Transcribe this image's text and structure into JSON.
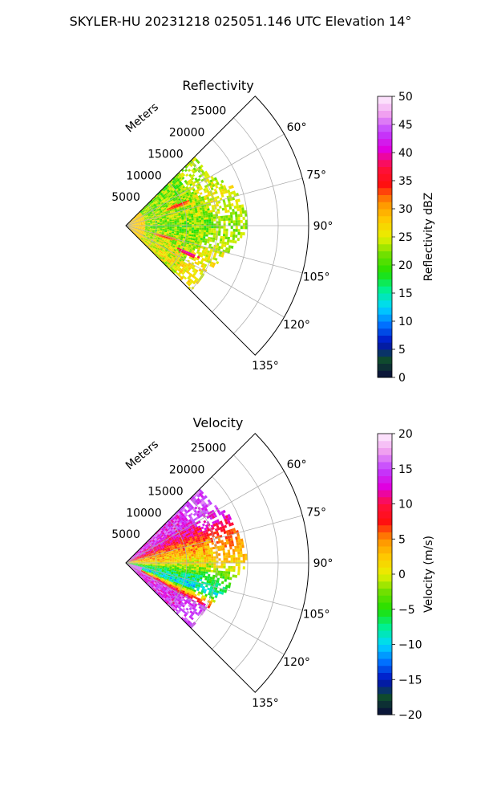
{
  "figure": {
    "suptitle": "SKYLER-HU  20231218  025051.146 UTC Elevation 14°"
  },
  "chart_data": [
    {
      "type": "heatmap",
      "projection": "polar-sector",
      "title": "Reflectivity",
      "theta_range_deg": [
        45,
        135
      ],
      "theta_ticks": [
        "60°",
        "75°",
        "90°",
        "105°",
        "120°",
        "135°"
      ],
      "radial_label": "Meters",
      "radial_ticks": [
        "5000",
        "10000",
        "15000",
        "20000",
        "25000"
      ],
      "rmax": 30000,
      "grid": true,
      "data_extent_m": 20000,
      "field_summary": [
        {
          "azimuth_deg": 60,
          "max_range_m": 16000,
          "dominant_dbz": 22
        },
        {
          "azimuth_deg": 70,
          "max_range_m": 18500,
          "dominant_dbz": 24
        },
        {
          "azimuth_deg": 80,
          "max_range_m": 19500,
          "dominant_dbz": 23
        },
        {
          "azimuth_deg": 90,
          "max_range_m": 20000,
          "dominant_dbz": 21
        },
        {
          "azimuth_deg": 100,
          "max_range_m": 18000,
          "dominant_dbz": 22
        },
        {
          "azimuth_deg": 110,
          "max_range_m": 16500,
          "dominant_dbz": 24
        },
        {
          "azimuth_deg": 120,
          "max_range_m": 15000,
          "dominant_dbz": 25
        }
      ],
      "cores": [
        {
          "azimuth_deg": 68,
          "range_m": 9000,
          "dbz": 36
        },
        {
          "azimuth_deg": 113,
          "range_m": 11000,
          "dbz": 41
        },
        {
          "azimuth_deg": 105,
          "range_m": 6500,
          "dbz": 35
        }
      ],
      "colorbar": {
        "label": "Reflectivity dBZ",
        "min": 0,
        "max": 50,
        "ticks": [
          "0",
          "5",
          "10",
          "15",
          "20",
          "25",
          "30",
          "35",
          "40",
          "45",
          "50"
        ],
        "stops": [
          "#0a0a3c",
          "#0f4a2e",
          "#0010c0",
          "#0070ff",
          "#00d8ff",
          "#00f090",
          "#20e000",
          "#70e000",
          "#e8f000",
          "#ffc800",
          "#ff9000",
          "#ff1010",
          "#ff1040",
          "#e000e0",
          "#c040ff",
          "#f0a0f0",
          "#fff0ff"
        ]
      }
    },
    {
      "type": "heatmap",
      "projection": "polar-sector",
      "title": "Velocity",
      "theta_range_deg": [
        45,
        135
      ],
      "theta_ticks": [
        "60°",
        "75°",
        "90°",
        "105°",
        "120°",
        "135°"
      ],
      "radial_label": "Meters",
      "radial_ticks": [
        "5000",
        "10000",
        "15000",
        "20000",
        "25000"
      ],
      "rmax": 30000,
      "grid": true,
      "data_extent_m": 20000,
      "field_summary": [
        {
          "azimuth_deg": 55,
          "max_range_m": 17000,
          "dominant_ms": 14
        },
        {
          "azimuth_deg": 65,
          "max_range_m": 18500,
          "dominant_ms": 11
        },
        {
          "azimuth_deg": 75,
          "max_range_m": 19000,
          "dominant_ms": 5
        },
        {
          "azimuth_deg": 90,
          "max_range_m": 20000,
          "dominant_ms": 1
        },
        {
          "azimuth_deg": 100,
          "max_range_m": 18000,
          "dominant_ms": -6
        },
        {
          "azimuth_deg": 110,
          "max_range_m": 16000,
          "dominant_ms": -10
        },
        {
          "azimuth_deg": 120,
          "max_range_m": 15000,
          "dominant_ms": 14
        }
      ],
      "colorbar": {
        "label": "Velocity (m/s)",
        "min": -20,
        "max": 20,
        "ticks": [
          "−20",
          "−15",
          "−10",
          "−5",
          "0",
          "5",
          "10",
          "15",
          "20"
        ],
        "stops": [
          "#0a0a3c",
          "#0f4a2e",
          "#0010c0",
          "#0070ff",
          "#00d8ff",
          "#00f090",
          "#20e000",
          "#70e000",
          "#e8f000",
          "#ffc800",
          "#ff9000",
          "#ff1010",
          "#ff1040",
          "#e000e0",
          "#c040ff",
          "#f0a0f0",
          "#fff0ff"
        ]
      }
    }
  ]
}
